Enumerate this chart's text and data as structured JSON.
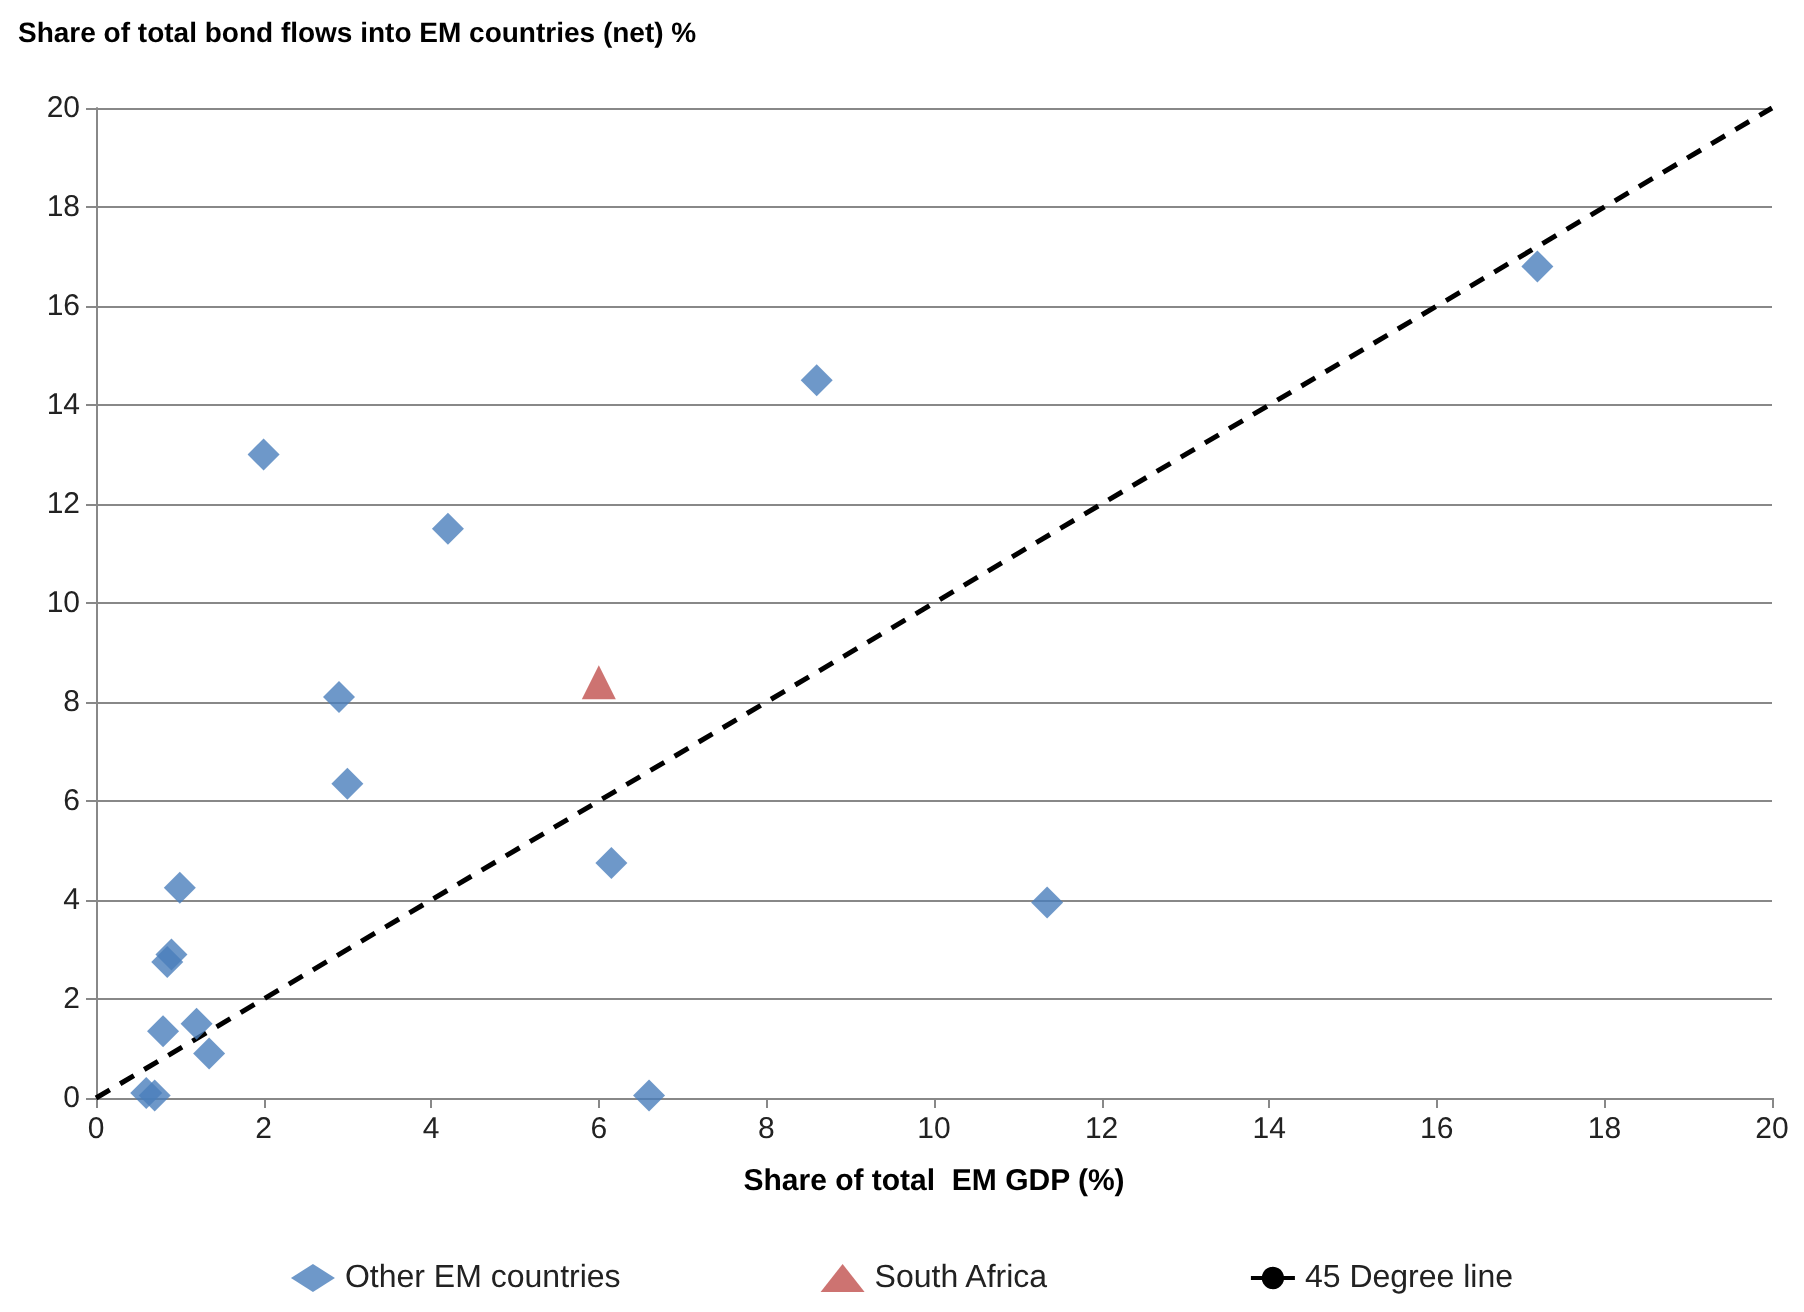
{
  "chart_data": {
    "type": "scatter",
    "title": "Share of total bond flows into EM countries (net) %",
    "xlabel": "Share of total  EM GDP (%)",
    "xlim": [
      0,
      20
    ],
    "xticks": [
      0,
      2,
      4,
      6,
      8,
      10,
      12,
      14,
      16,
      18,
      20
    ],
    "ylim": [
      0,
      20
    ],
    "yticks": [
      0,
      2,
      4,
      6,
      8,
      10,
      12,
      14,
      16,
      18,
      20
    ],
    "grid": "y",
    "legend": "bottom",
    "series": [
      {
        "name": "Other EM countries",
        "color": "#4a7ebb",
        "marker": "diamond",
        "x": [
          17.2,
          8.6,
          2.0,
          4.2,
          2.9,
          3.0,
          6.15,
          11.35,
          6.6,
          1.0,
          0.9,
          0.85,
          0.8,
          1.2,
          1.35,
          0.6,
          0.7
        ],
        "values": [
          16.8,
          14.5,
          13.0,
          11.5,
          8.1,
          6.35,
          4.75,
          3.95,
          0.05,
          4.25,
          2.9,
          2.75,
          1.35,
          1.5,
          0.9,
          0.1,
          0.05
        ]
      },
      {
        "name": "South Africa",
        "color": "#c0504d",
        "marker": "triangle",
        "x": [
          6.0
        ],
        "values": [
          8.4
        ]
      },
      {
        "name": "45 Degree line",
        "type": "line",
        "color": "#000000",
        "marker": "none",
        "line_style": "dashed",
        "x": [
          0,
          20
        ],
        "values": [
          0,
          20
        ]
      }
    ]
  }
}
